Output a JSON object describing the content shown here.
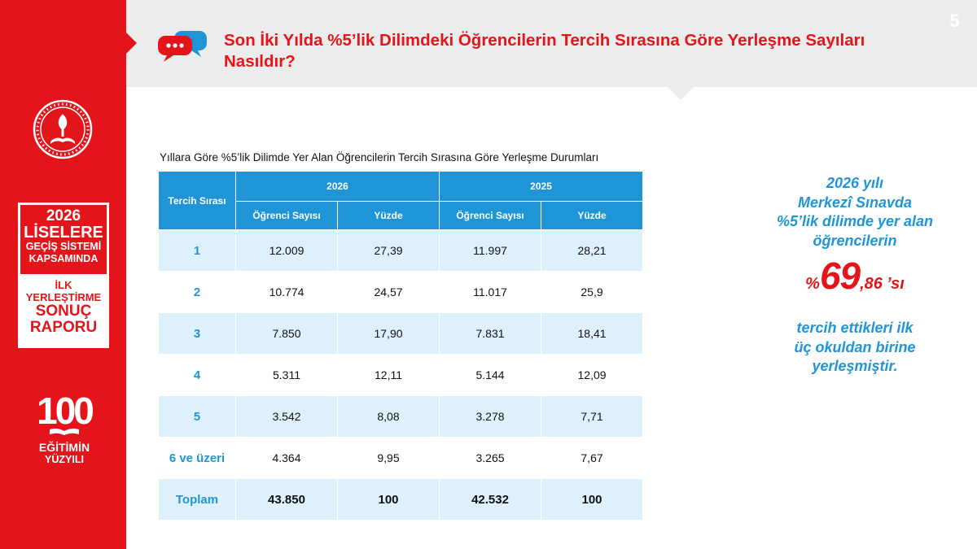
{
  "page_number": "5",
  "header": {
    "title": "Son İki Yılda %5’lik Dilimdeki Öğrencilerin Tercih Sırasına Göre Yerleşme Sayıları Nasıldır?"
  },
  "sidebar": {
    "report_box": {
      "year": "2026",
      "line1": "LİSELERE",
      "line2": "GEÇİŞ SİSTEMİ",
      "line3": "KAPSAMINDA",
      "line4": "İLK",
      "line5": "YERLEŞTİRME",
      "line6": "SONUÇ",
      "line7": "RAPORU"
    },
    "century_logo": {
      "number": "100",
      "line1": "EĞİTİMİN",
      "line2": "YÜZYILI"
    }
  },
  "table": {
    "caption": "Yıllara Göre %5’lik Dilimde Yer Alan Öğrencilerin Tercih Sırasına Göre Yerleşme Durumları",
    "rank_header": "Tercih Sırası",
    "years": [
      "2026",
      "2025"
    ],
    "subheaders": [
      "Öğrenci Sayısı",
      "Yüzde",
      "Öğrenci Sayısı",
      "Yüzde"
    ],
    "rows": [
      {
        "rank": "1",
        "c2026": "12.009",
        "p2026": "27,39",
        "c2025": "11.997",
        "p2025": "28,21"
      },
      {
        "rank": "2",
        "c2026": "10.774",
        "p2026": "24,57",
        "c2025": "11.017",
        "p2025": "25,9"
      },
      {
        "rank": "3",
        "c2026": "7.850",
        "p2026": "17,90",
        "c2025": "7.831",
        "p2025": "18,41"
      },
      {
        "rank": "4",
        "c2026": "5.311",
        "p2026": "12,11",
        "c2025": "5.144",
        "p2025": "12,09"
      },
      {
        "rank": "5",
        "c2026": "3.542",
        "p2026": "8,08",
        "c2025": "3.278",
        "p2025": "7,71"
      },
      {
        "rank": "6 ve üzeri",
        "c2026": "4.364",
        "p2026": "9,95",
        "c2025": "3.265",
        "p2025": "7,67"
      }
    ],
    "total": {
      "rank": "Toplam",
      "c2026": "43.850",
      "p2026": "100",
      "c2025": "42.532",
      "p2025": "100"
    }
  },
  "callout": {
    "line1": "2026 yılı",
    "line2": "Merkezî Sınavda",
    "line3": "%5’lik dilimde yer alan",
    "line4": "öğrencilerin",
    "pct_symbol": "%",
    "pct_main": "69",
    "pct_decimal": ",86",
    "pct_suffix": "’sı",
    "line5": "tercih ettikleri ilk",
    "line6": "üç okuldan birine",
    "line7": "yerleşmiştir."
  },
  "colors": {
    "brand_red": "#e3151a",
    "table_blue": "#1f95d8",
    "row_tint": "#ddf0fb",
    "header_gray": "#ececec"
  },
  "icons": [
    "ministry-emblem-icon",
    "chat-bubbles-icon",
    "book-icon"
  ]
}
